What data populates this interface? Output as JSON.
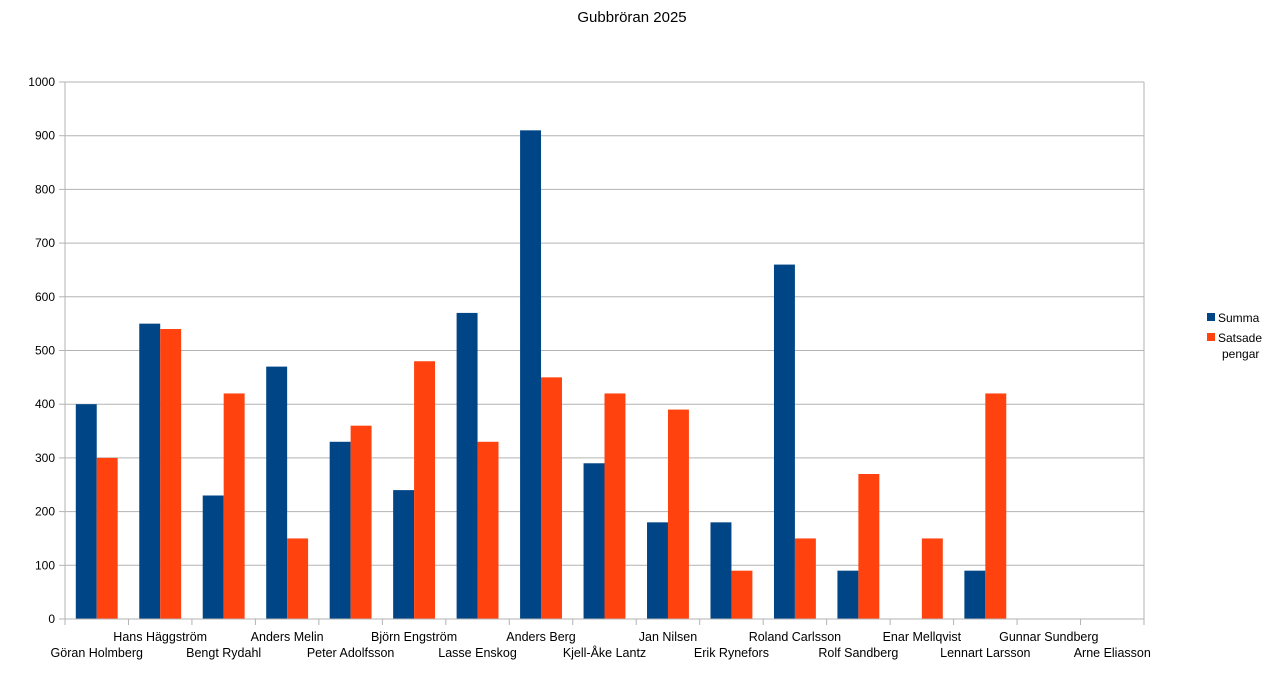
{
  "chart_data": {
    "type": "bar",
    "title": "Gubbröran 2025",
    "xlabel": "",
    "ylabel": "",
    "ylim": [
      0,
      1000
    ],
    "yticks": [
      0,
      100,
      200,
      300,
      400,
      500,
      600,
      700,
      800,
      900,
      1000
    ],
    "grid": true,
    "legend_position": "right",
    "categories": [
      "Göran Holmberg",
      "Hans Häggström",
      "Bengt Rydahl",
      "Anders Melin",
      "Peter Adolfsson",
      "Björn Engström",
      "Lasse Enskog",
      "Anders Berg",
      "Kjell-Åke Lantz",
      "Jan Nilsen",
      "Erik Rynefors",
      "Roland Carlsson",
      "Rolf Sandberg",
      "Enar Mellqvist",
      "Lennart Larsson",
      "Gunnar Sundberg",
      "Arne Eliasson"
    ],
    "series": [
      {
        "name": "Summa",
        "color": "#004586",
        "values": [
          400,
          550,
          230,
          470,
          330,
          240,
          570,
          910,
          290,
          180,
          180,
          660,
          90,
          0,
          90,
          0,
          0
        ]
      },
      {
        "name": "Satsade pengar",
        "color": "#ff420e",
        "values": [
          300,
          540,
          420,
          150,
          360,
          480,
          330,
          450,
          420,
          390,
          90,
          150,
          270,
          150,
          420,
          0,
          0
        ]
      }
    ]
  }
}
